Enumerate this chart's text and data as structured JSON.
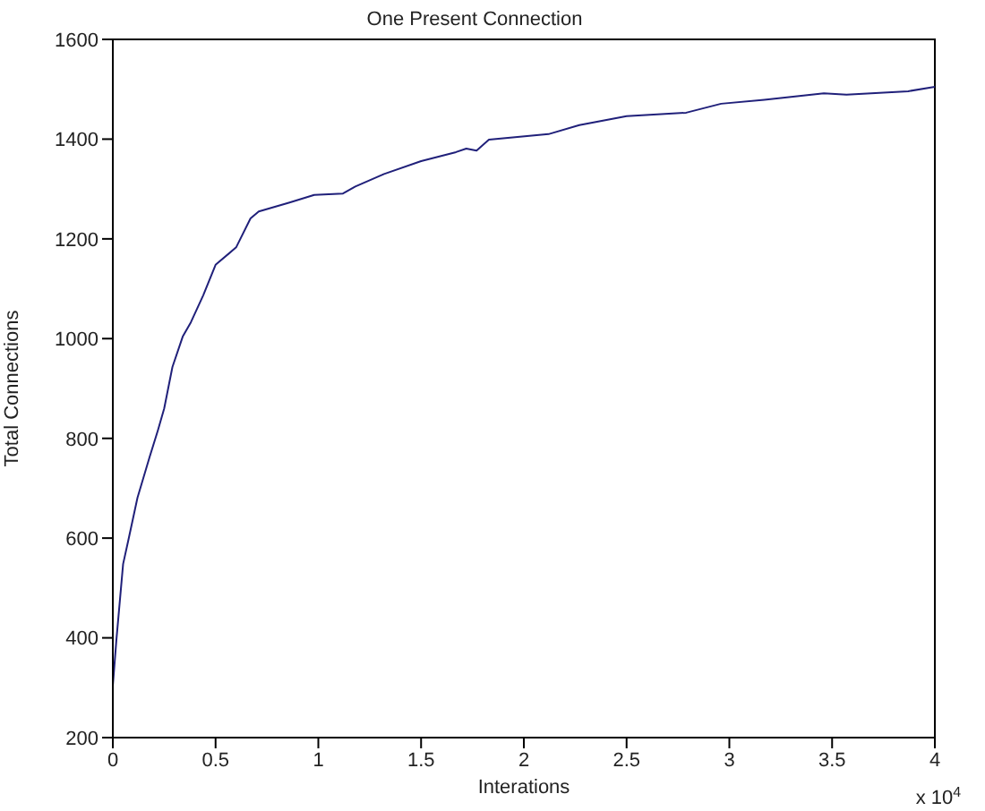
{
  "chart_data": {
    "type": "line",
    "title": "One Present Connection",
    "xlabel": "Interations",
    "ylabel": "Total Connections",
    "annotations": [
      "x 10$^{4}$"
    ],
    "x": [
      0,
      0.017,
      0.05,
      0.075,
      0.12,
      0.18,
      0.22,
      0.25,
      0.29,
      0.34,
      0.38,
      0.44,
      0.5,
      0.6,
      0.67,
      0.71,
      0.86,
      0.98,
      1.12,
      1.18,
      1.32,
      1.5,
      1.67,
      1.72,
      1.77,
      1.83,
      2.12,
      2.27,
      2.5,
      2.79,
      2.96,
      3.17,
      3.46,
      3.57,
      3.87,
      4
    ],
    "series": [
      {
        "color": "#20207a",
        "values": [
          304,
          394,
          548,
          595,
          681,
          764,
          817,
          860,
          943,
          1004,
          1033,
          1087,
          1148,
          1183,
          1241,
          1255,
          1273,
          1288,
          1291,
          1305,
          1330,
          1356,
          1374,
          1381,
          1377,
          1399,
          1410,
          1428,
          1446,
          1453,
          1471,
          1479,
          1492,
          1489,
          1496,
          1505
        ]
      }
    ],
    "xlim": [
      0,
      4
    ],
    "xticks": [
      0,
      0.5,
      1,
      1.5,
      2,
      2.5,
      3,
      3.5,
      4
    ],
    "ylim": [
      200,
      1600
    ],
    "yticks": [
      200,
      400,
      600,
      800,
      1000,
      1200,
      1400,
      1600
    ],
    "grid": false,
    "legend": false,
    "marker": "none",
    "line_style": "solid"
  }
}
